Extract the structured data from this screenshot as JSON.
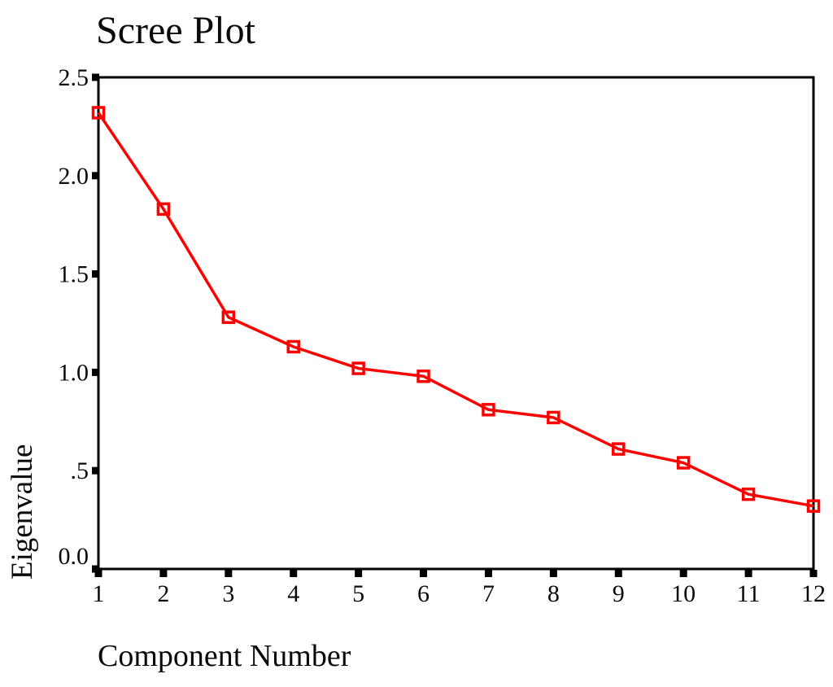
{
  "chart_data": {
    "type": "line",
    "title": "Scree Plot",
    "xlabel": "Component Number",
    "ylabel": "Eigenvalue",
    "series": [
      {
        "name": "Eigenvalue",
        "x": [
          1,
          2,
          3,
          4,
          5,
          6,
          7,
          8,
          9,
          10,
          11,
          12
        ],
        "values": [
          2.32,
          1.83,
          1.28,
          1.13,
          1.02,
          0.98,
          0.81,
          0.77,
          0.61,
          0.54,
          0.38,
          0.32
        ]
      }
    ],
    "xtick_labels": [
      "1",
      "2",
      "3",
      "4",
      "5",
      "6",
      "7",
      "8",
      "9",
      "10",
      "11",
      "12"
    ],
    "yticks": [
      {
        "value": 0.0,
        "label": "0.0"
      },
      {
        "value": 0.5,
        "label": ".5"
      },
      {
        "value": 1.0,
        "label": "1.0"
      },
      {
        "value": 1.5,
        "label": "1.5"
      },
      {
        "value": 2.0,
        "label": "2.0"
      },
      {
        "value": 2.5,
        "label": "2.5"
      }
    ],
    "xlim": [
      1,
      12
    ],
    "ylim": [
      0,
      2.5
    ],
    "grid": false,
    "legend": "none",
    "line_color": "#ff0000",
    "marker": "open-square",
    "axis_color": "#000000",
    "background": "#ffffff"
  }
}
